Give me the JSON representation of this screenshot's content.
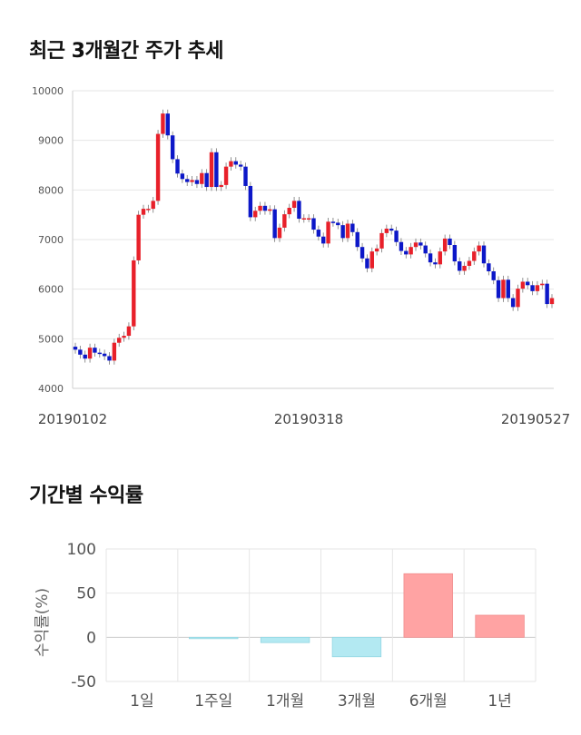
{
  "sections": {
    "candle_title": "최근 3개월간 주가 추세",
    "returns_title": "기간별 수익률"
  },
  "colors": {
    "up": "#e8202a",
    "down": "#0c17c8",
    "positive_bar": "#ffa3a3",
    "negative_bar": "#b3e9f2",
    "grid": "#e6e6e6"
  },
  "chart_data": [
    {
      "type": "candlestick",
      "title": "최근 3개월간 주가 추세",
      "ylim": [
        4000,
        10000
      ],
      "yticks": [
        4000,
        5000,
        6000,
        7000,
        8000,
        9000,
        10000
      ],
      "x_tick_labels": [
        "20190102",
        "20190318",
        "20190527"
      ],
      "grid": true,
      "closes": [
        4780,
        4680,
        4600,
        4820,
        4720,
        4700,
        4650,
        4560,
        4920,
        5020,
        5060,
        5250,
        6580,
        7500,
        7620,
        7620,
        7780,
        9130,
        9540,
        9100,
        8620,
        8330,
        8220,
        8160,
        8200,
        8120,
        8340,
        8060,
        8760,
        8060,
        8100,
        8470,
        8580,
        8510,
        8470,
        8080,
        7450,
        7580,
        7680,
        7580,
        7610,
        7030,
        7240,
        7510,
        7640,
        7780,
        7420,
        7430,
        7430,
        7200,
        7060,
        6920,
        7360,
        7340,
        7290,
        7030,
        7320,
        7150,
        6850,
        6620,
        6420,
        6760,
        6820,
        7130,
        7220,
        7180,
        6950,
        6770,
        6700,
        6850,
        6940,
        6880,
        6720,
        6540,
        6500,
        6760,
        7020,
        6890,
        6560,
        6370,
        6470,
        6570,
        6760,
        6880,
        6520,
        6360,
        6180,
        5820,
        6190,
        5820,
        5640,
        6010,
        6150,
        6080,
        5960,
        6080,
        6110,
        5700,
        5820
      ],
      "series": [
        {
          "name": "up",
          "color": "#e8202a"
        },
        {
          "name": "down",
          "color": "#0c17c8"
        }
      ]
    },
    {
      "type": "bar",
      "title": "기간별 수익률",
      "ylabel": "수익률(%)",
      "ylim": [
        -50,
        100
      ],
      "yticks": [
        -50,
        0,
        50,
        100
      ],
      "categories": [
        "1일",
        "1주일",
        "1개월",
        "3개월",
        "6개월",
        "1년"
      ],
      "values": [
        0,
        -1,
        -6,
        -22,
        72,
        25
      ],
      "grid": true
    }
  ]
}
